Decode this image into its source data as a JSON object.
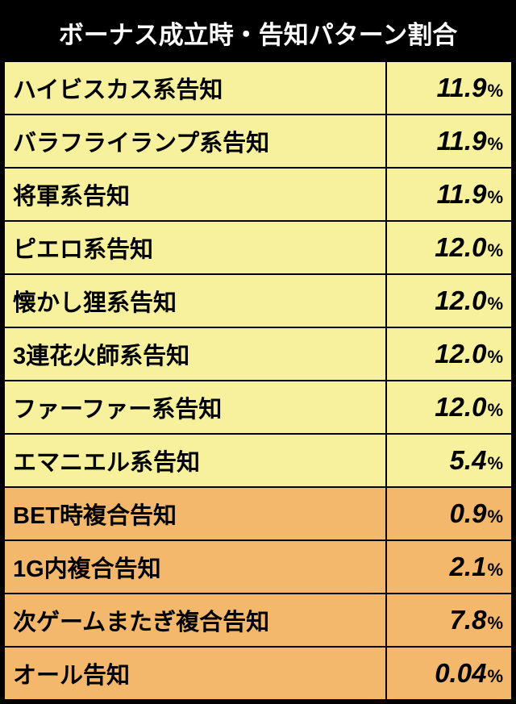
{
  "title": "ボーナス成立時・告知パターン割合",
  "colors": {
    "header_bg": "#000000",
    "header_text": "#ffffff",
    "yellow": "#f7f19e",
    "orange": "#f4b86c",
    "border": "#000000"
  },
  "percent_symbol": "%",
  "rows": [
    {
      "label": "ハイビスカス系告知",
      "value": "11.9",
      "color": "yellow"
    },
    {
      "label": "バラフライランプ系告知",
      "value": "11.9",
      "color": "yellow"
    },
    {
      "label": "将軍系告知",
      "value": "11.9",
      "color": "yellow"
    },
    {
      "label": "ピエロ系告知",
      "value": "12.0",
      "color": "yellow"
    },
    {
      "label": "懐かし狸系告知",
      "value": "12.0",
      "color": "yellow"
    },
    {
      "label": "3連花火師系告知",
      "value": "12.0",
      "color": "yellow"
    },
    {
      "label": "ファーファー系告知",
      "value": "12.0",
      "color": "yellow"
    },
    {
      "label": "エマニエル系告知",
      "value": "5.4",
      "color": "yellow"
    },
    {
      "label": "BET時複合告知",
      "value": "0.9",
      "color": "orange"
    },
    {
      "label": "1G内複合告知",
      "value": "2.1",
      "color": "orange"
    },
    {
      "label": "次ゲームまたぎ複合告知",
      "value": "7.8",
      "color": "orange"
    },
    {
      "label": "オール告知",
      "value": "0.04",
      "color": "orange"
    }
  ]
}
